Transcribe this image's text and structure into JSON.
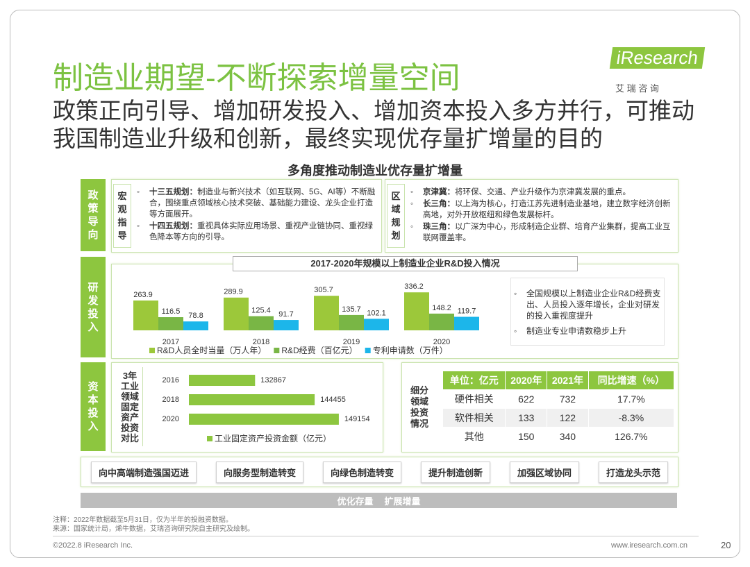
{
  "header": {
    "title": "制造业期望-不断探索增量空间",
    "subtitle": "政策正向引导、增加研发投入、增加资本投入多方并行，可推动我国制造业升级和创新，最终实现优存量扩增量的目的",
    "logo": "iResearch",
    "logo_cn": "艾 瑞 咨 询"
  },
  "section_title": "多角度推动制造业优存量扩增量",
  "policy": {
    "label": "政策导向",
    "macro": {
      "label": "宏观指导",
      "items": [
        {
          "head": "十三五规划：",
          "text": "制造业与新兴技术（如互联网、5G、AI等）不断融合，围绕重点领域核心技术突破、基础能力建设、龙头企业打造等方面展开。"
        },
        {
          "head": "十四五规划：",
          "text": "重视具体实际应用场景、重视产业链协同、重视绿色降本等方向的引导。"
        }
      ]
    },
    "region": {
      "label": "区域规划",
      "items": [
        {
          "head": "京津冀：",
          "text": "将环保、交通、产业升级作为京津冀发展的重点。"
        },
        {
          "head": "长三角：",
          "text": "以上海为核心，打造江苏先进制造业基地，建立数字经济创新高地，对外开放枢纽和绿色发展标杆。"
        },
        {
          "head": "珠三角：",
          "text": "以广深为中心，形成制造企业群、培育产业集群，提高工业互联网覆盖率。"
        }
      ]
    }
  },
  "rd": {
    "label": "研发投入",
    "notes": [
      "全国规模以上制造业企业R&D经费支出、人员投入逐年增长，企业对研发的投入重视度提升",
      "制造业专业申请数稳步上升"
    ]
  },
  "capital": {
    "label": "资本投入",
    "table_label": "细分领域投资情况"
  },
  "chart_data": [
    {
      "type": "bar",
      "title": "2017-2020年规模以上制造业企业R&D投入情况",
      "categories": [
        "2017",
        "2018",
        "2019",
        "2020"
      ],
      "ylim": [
        0,
        350
      ],
      "series": [
        {
          "name": "R&D人员全时当量（万人年）",
          "color": "#9cc83a",
          "values": [
            263.9,
            289.9,
            305.7,
            336.2
          ]
        },
        {
          "name": "R&D经费（百亿元）",
          "color": "#79b645",
          "values": [
            116.5,
            125.4,
            135.7,
            148.2
          ]
        },
        {
          "name": "专利申请数（万件）",
          "color": "#1cb6ea",
          "values": [
            78.8,
            91.7,
            102.1,
            119.7
          ]
        }
      ]
    },
    {
      "type": "barh",
      "title": "3年工业领域固定资产投资对比",
      "categories": [
        "2016",
        "2018",
        "2020"
      ],
      "xlim": [
        120000,
        152000
      ],
      "series": [
        {
          "name": "工业固定资产投资金额（亿元）",
          "color": "#8dc63f",
          "values": [
            132867,
            144455,
            149154
          ]
        }
      ]
    }
  ],
  "table": {
    "header": [
      "单位：亿元",
      "2020年",
      "2021年",
      "同比增速（%）"
    ],
    "rows": [
      [
        "硬件相关",
        "622",
        "732",
        "17.7%"
      ],
      [
        "软件相关",
        "133",
        "122",
        "-8.3%"
      ],
      [
        "其他",
        "150",
        "340",
        "126.7%"
      ]
    ]
  },
  "actions": [
    "向中高端制造强国迈进",
    "向服务型制造转变",
    "向绿色制造转变",
    "提升制造创新",
    "加强区域协同",
    "打造龙头示范"
  ],
  "goal": [
    "优化存量",
    "扩展增量"
  ],
  "footer": {
    "notes": [
      "注释：2022年数据截至5月31日，仅为半年的投融资数据。",
      "来源：国家统计局，烯牛数据，艾瑞咨询研究院自主研究及绘制。"
    ],
    "copyright": "©2022.8 iResearch Inc.",
    "url": "www.iresearch.com.cn",
    "page": "20"
  }
}
